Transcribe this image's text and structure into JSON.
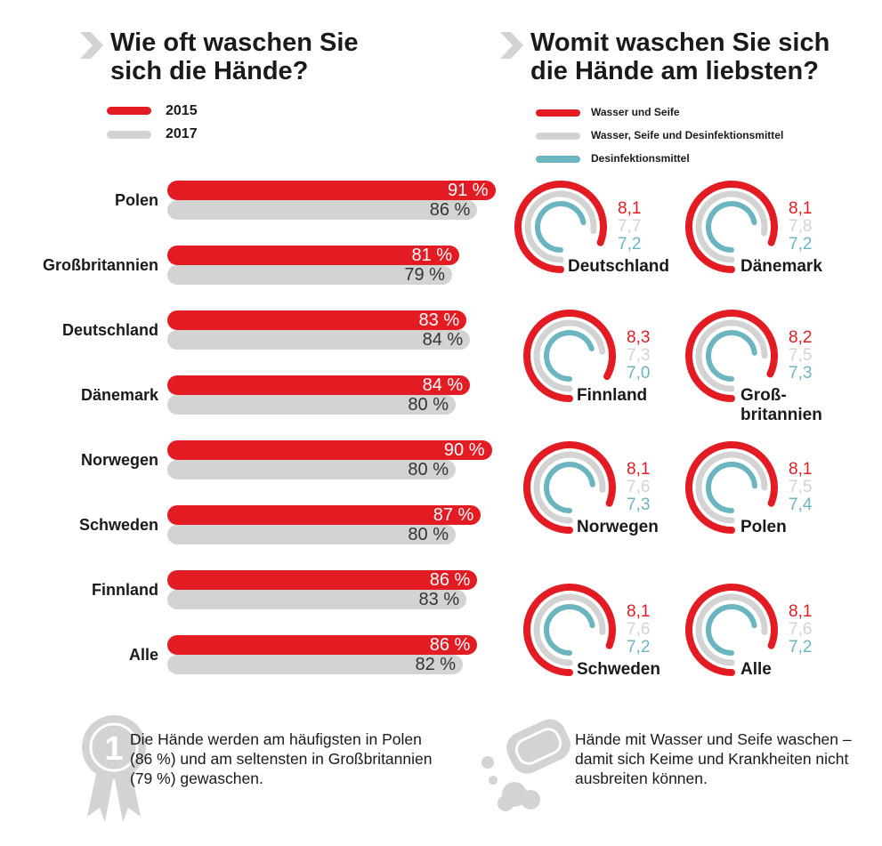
{
  "colors": {
    "red": "#e31b23",
    "gray": "#d3d3d3",
    "teal": "#6bb5c1",
    "text": "#1a1a1a"
  },
  "left": {
    "title_line1": "Wie oft waschen Sie",
    "title_line2": "sich die Hände?",
    "legend": [
      "2015",
      "2017"
    ]
  },
  "right": {
    "title_line1": "Womit waschen Sie sich",
    "title_line2": "die Hände am liebsten?",
    "legend": [
      "Wasser und Seife",
      "Wasser, Seife und Desinfektionsmittel",
      "Desinfektionsmittel"
    ]
  },
  "chart_data": [
    {
      "type": "bar",
      "categories": [
        "Polen",
        "Großbritannien",
        "Deutschland",
        "Dänemark",
        "Norwegen",
        "Schweden",
        "Finnland",
        "Alle"
      ],
      "series": [
        {
          "name": "2015",
          "values": [
            91,
            81,
            83,
            84,
            90,
            87,
            86,
            86
          ]
        },
        {
          "name": "2017",
          "values": [
            86,
            79,
            84,
            80,
            80,
            80,
            83,
            82
          ]
        }
      ],
      "unit": "%",
      "labels_2015": [
        "91 %",
        "81 %",
        "83 %",
        "84 %",
        "90 %",
        "87 %",
        "86 %",
        "86 %"
      ],
      "labels_2017": [
        "86 %",
        "79 %",
        "84 %",
        "80 %",
        "80 %",
        "80 %",
        "83 %",
        "82 %"
      ]
    },
    {
      "type": "radial-bar",
      "scale_max": 10,
      "items": [
        {
          "country": "Deutschland",
          "values": [
            "8,1",
            "7,7",
            "7,2"
          ]
        },
        {
          "country": "Dänemark",
          "values": [
            "8,1",
            "7,8",
            "7,2"
          ]
        },
        {
          "country": "Finnland",
          "values": [
            "8,3",
            "7,3",
            "7,0"
          ]
        },
        {
          "country": "Groß-\nbritannien",
          "values": [
            "8,2",
            "7,5",
            "7,3"
          ]
        },
        {
          "country": "Norwegen",
          "values": [
            "8,1",
            "7,6",
            "7,3"
          ]
        },
        {
          "country": "Polen",
          "values": [
            "8,1",
            "7,5",
            "7,4"
          ]
        },
        {
          "country": "Schweden",
          "values": [
            "8,1",
            "7,6",
            "7,2"
          ]
        },
        {
          "country": "Alle",
          "values": [
            "8,1",
            "7,6",
            "7,2"
          ]
        }
      ]
    }
  ],
  "notes": {
    "left": "Die Hände werden am häufigsten in Polen (86 %) und am seltensten in Großbritannien (79 %) gewaschen.",
    "right": "Hände mit Wasser und Seife waschen – damit sich Keime und Krankheiten nicht ausbreiten können."
  },
  "icons": {
    "title_chevron": "chevron-right-icon",
    "medal": "medal-icon",
    "soap": "soap-icon"
  }
}
